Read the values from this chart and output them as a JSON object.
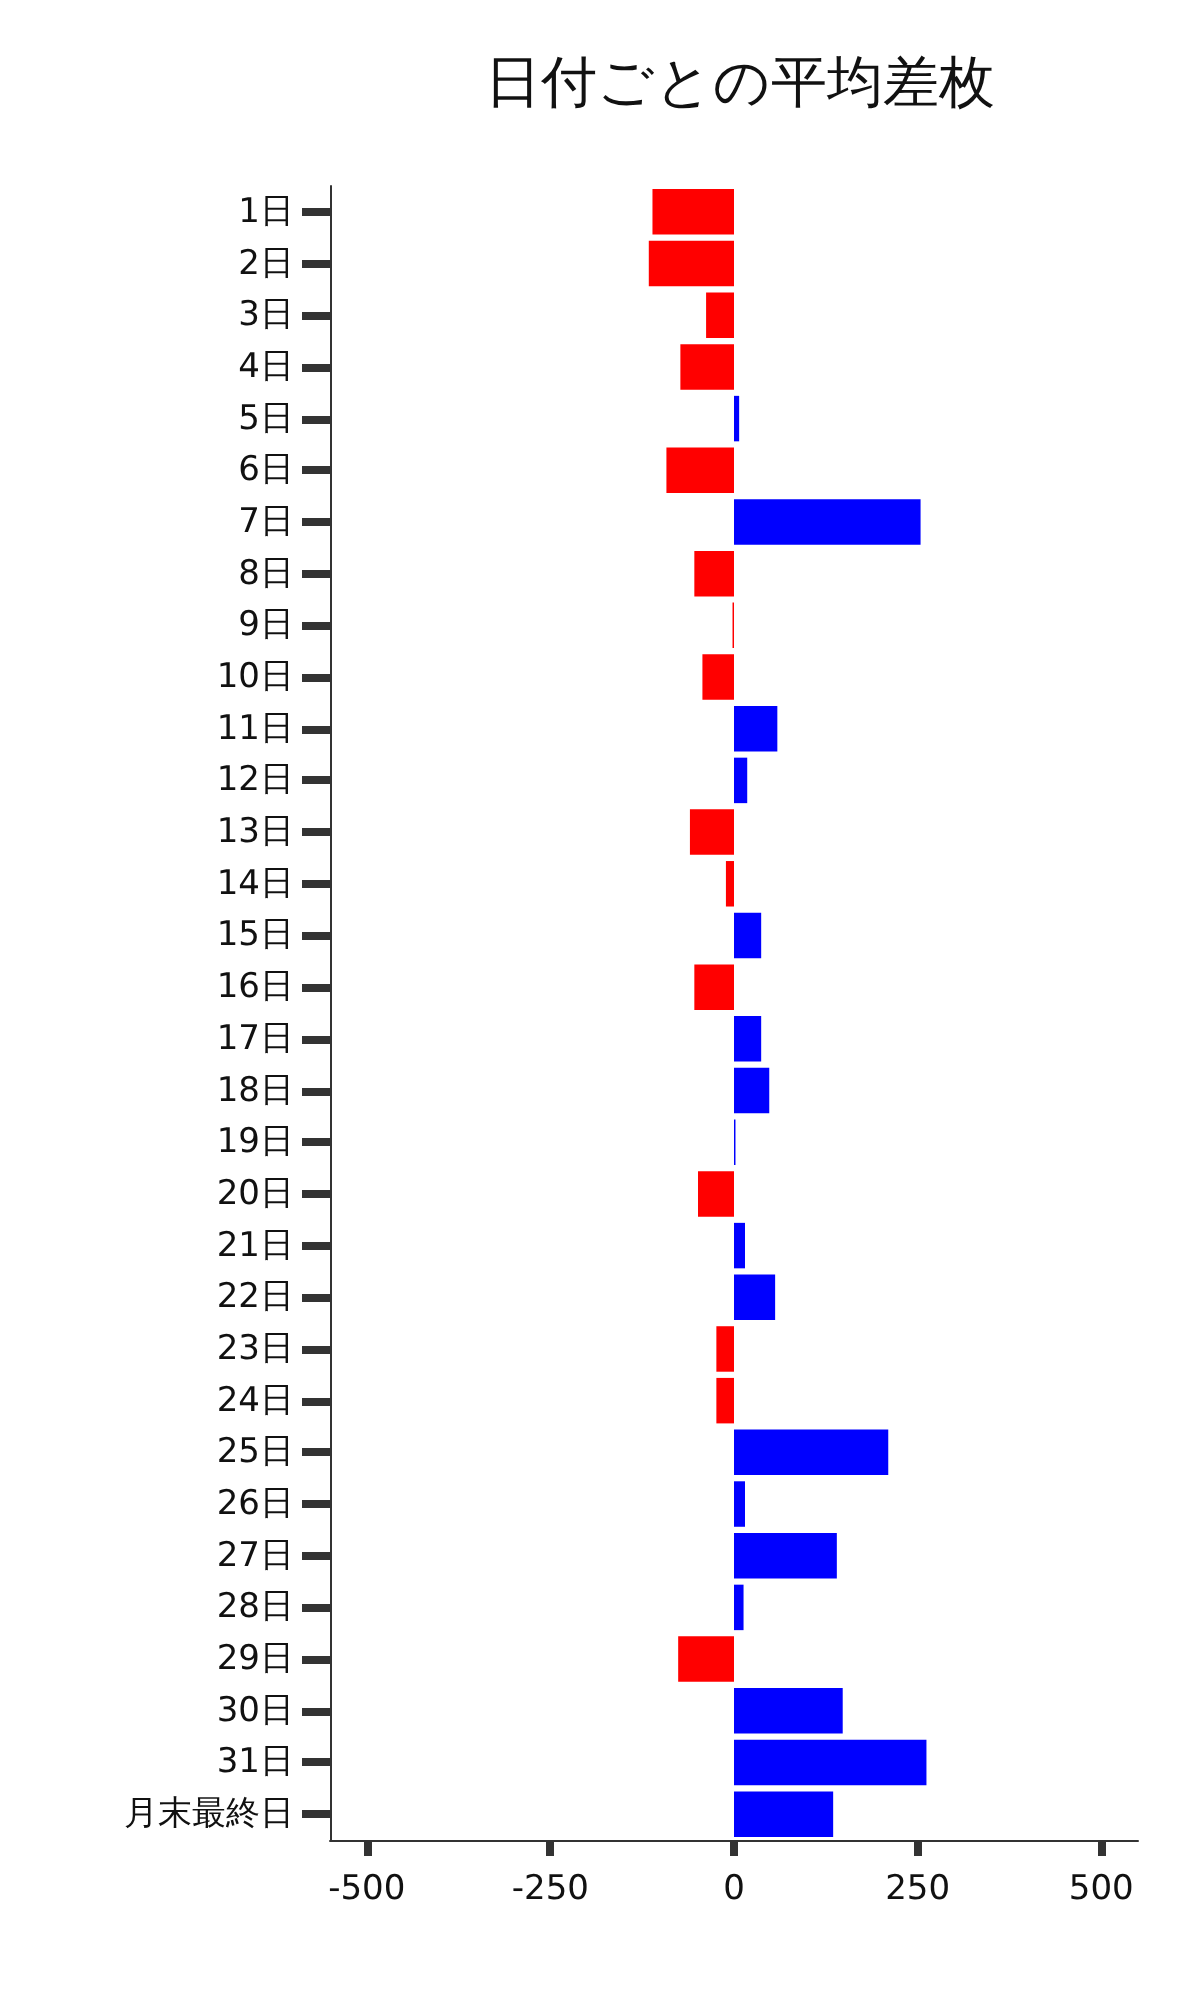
{
  "chart_data": {
    "type": "bar",
    "orientation": "horizontal",
    "title": "日付ごとの平均差枚",
    "categories": [
      "1日",
      "2日",
      "3日",
      "4日",
      "5日",
      "6日",
      "7日",
      "8日",
      "9日",
      "10日",
      "11日",
      "12日",
      "13日",
      "14日",
      "15日",
      "16日",
      "17日",
      "18日",
      "19日",
      "20日",
      "21日",
      "22日",
      "23日",
      "24日",
      "25日",
      "26日",
      "27日",
      "28日",
      "29日",
      "30日",
      "31日",
      "月末最終日"
    ],
    "values": [
      -111,
      -116,
      -38,
      -73,
      7,
      -92,
      254,
      -54,
      -2,
      -43,
      59,
      18,
      -60,
      -11,
      37,
      -54,
      37,
      48,
      2,
      -49,
      15,
      56,
      -24,
      -24,
      210,
      15,
      140,
      13,
      -76,
      148,
      262,
      135
    ],
    "colors": [
      "#ff0000",
      "#ff0000",
      "#ff0000",
      "#ff0000",
      "#0000ff",
      "#ff0000",
      "#0000ff",
      "#ff0000",
      "#ff0000",
      "#ff0000",
      "#0000ff",
      "#0000ff",
      "#ff0000",
      "#ff0000",
      "#0000ff",
      "#ff0000",
      "#0000ff",
      "#0000ff",
      "#0000ff",
      "#ff0000",
      "#0000ff",
      "#0000ff",
      "#ff0000",
      "#ff0000",
      "#0000ff",
      "#0000ff",
      "#0000ff",
      "#0000ff",
      "#ff0000",
      "#0000ff",
      "#0000ff",
      "#0000ff"
    ],
    "xlim": [
      -550,
      550
    ],
    "xticks": [
      -500,
      -250,
      0,
      250,
      500
    ],
    "grid": false
  }
}
